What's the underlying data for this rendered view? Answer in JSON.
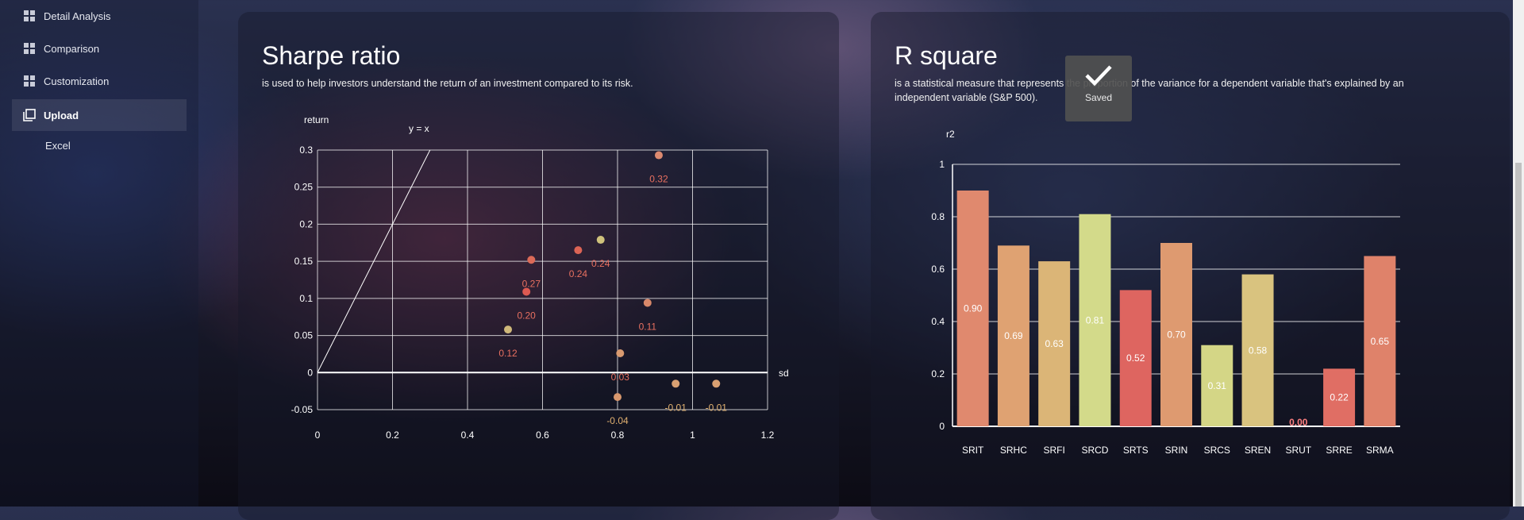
{
  "sidebar": {
    "items": [
      {
        "label": "Detail Analysis",
        "icon": "dashboard-icon"
      },
      {
        "label": "Comparison",
        "icon": "dashboard-icon"
      },
      {
        "label": "Customization",
        "icon": "dashboard-icon"
      },
      {
        "label": "Upload",
        "icon": "copy-icon"
      }
    ],
    "subitems": [
      {
        "label": "Excel"
      }
    ]
  },
  "sharpe": {
    "title": "Sharpe ratio",
    "description": "is used to help investors understand the return of an investment compared to its risk."
  },
  "rsquare": {
    "title": "R square",
    "description_line1": "is a statistical measure that represents the proportion of the variance for a dependent variable that's explained by an",
    "description_line2": "independent variable (S&P 500)."
  },
  "toast": {
    "text": "Saved",
    "icon": "checkmark-icon"
  },
  "colors": {
    "grid": "#ffffff",
    "label_red": "#e87060",
    "label_tan": "#e0b070"
  },
  "chart_data": [
    {
      "type": "scatter",
      "ylabel": "return",
      "xlabel": "sd",
      "line_label": "y = x",
      "xlim": [
        0,
        1.2
      ],
      "ylim": [
        -0.05,
        0.3
      ],
      "xticks": [
        "0",
        "0.2",
        "0.4",
        "0.6",
        "0.8",
        "1",
        "1.2"
      ],
      "yticks": [
        "-0.05",
        "0",
        "0.05",
        "0.1",
        "0.15",
        "0.2",
        "0.25",
        "0.3"
      ],
      "grid": true,
      "points": [
        {
          "x": 0.91,
          "y": 0.293,
          "label": "0.32",
          "color": "#dd8a70"
        },
        {
          "x": 0.755,
          "y": 0.179,
          "label": "0.24",
          "color": "#cfc27c"
        },
        {
          "x": 0.695,
          "y": 0.165,
          "label": "0.24",
          "color": "#dc6455"
        },
        {
          "x": 0.57,
          "y": 0.152,
          "label": "0.27",
          "color": "#dc6a58"
        },
        {
          "x": 0.557,
          "y": 0.109,
          "label": "0.20",
          "color": "#dc5a52"
        },
        {
          "x": 0.88,
          "y": 0.094,
          "label": "0.11",
          "color": "#d9886a"
        },
        {
          "x": 0.508,
          "y": 0.058,
          "label": "0.12",
          "color": "#cfb87a"
        },
        {
          "x": 0.807,
          "y": 0.026,
          "label": "0.03",
          "color": "#d99a70"
        },
        {
          "x": 0.8,
          "y": -0.033,
          "label": "-0.04",
          "color": "#d9986e"
        },
        {
          "x": 0.955,
          "y": -0.015,
          "label": "-0.01",
          "color": "#d9a072"
        },
        {
          "x": 1.063,
          "y": -0.015,
          "label": "-0.01",
          "color": "#d9a072"
        }
      ]
    },
    {
      "type": "bar",
      "ylabel": "r2",
      "ylim": [
        0,
        1
      ],
      "yticks": [
        "0",
        "0.2",
        "0.4",
        "0.6",
        "0.8",
        "1"
      ],
      "grid": true,
      "categories": [
        "SRIT",
        "SRHC",
        "SRFI",
        "SRCD",
        "SRTS",
        "SRIN",
        "SRCS",
        "SREN",
        "SRUT",
        "SRRE",
        "SRMA"
      ],
      "values": [
        0.9,
        0.69,
        0.63,
        0.81,
        0.52,
        0.7,
        0.31,
        0.58,
        0.0,
        0.22,
        0.65
      ],
      "labels": [
        "0.90",
        "0.69",
        "0.63",
        "0.81",
        "0.52",
        "0.70",
        "0.31",
        "0.58",
        "0.00",
        "0.22",
        "0.65"
      ],
      "colors": [
        "#e0896e",
        "#dfa272",
        "#dbb577",
        "#d3da8a",
        "#de6560",
        "#de9a70",
        "#d4d686",
        "#d9c37f",
        "#de5e5c",
        "#e06e64",
        "#df826a"
      ]
    }
  ]
}
